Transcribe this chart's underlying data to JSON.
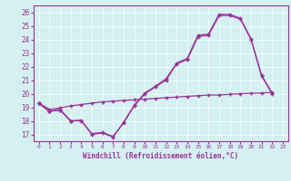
{
  "xlabel": "Windchill (Refroidissement éolien,°C)",
  "x": [
    0,
    1,
    2,
    3,
    4,
    5,
    6,
    7,
    8,
    9,
    10,
    11,
    12,
    13,
    14,
    15,
    16,
    17,
    18,
    19,
    20,
    21,
    22,
    23
  ],
  "series": [
    [
      19.3,
      18.7,
      18.85,
      18.0,
      18.05,
      17.0,
      17.1,
      16.8,
      17.9,
      19.15,
      20.05,
      20.55,
      21.1,
      22.25,
      22.6,
      24.3,
      24.4,
      25.85,
      25.85,
      25.55,
      24.05,
      21.35,
      20.05,
      null
    ],
    [
      19.3,
      18.7,
      18.8,
      18.0,
      18.0,
      17.05,
      17.15,
      16.85,
      17.85,
      19.1,
      20.0,
      20.5,
      21.0,
      22.2,
      22.5,
      24.2,
      24.3,
      25.75,
      25.75,
      25.5,
      24.0,
      21.3,
      20.0,
      null
    ],
    [
      19.3,
      18.7,
      18.8,
      18.0,
      null,
      null,
      null,
      null,
      null,
      null,
      null,
      null,
      null,
      null,
      null,
      null,
      null,
      null,
      null,
      null,
      null,
      null,
      null,
      null
    ],
    [
      19.3,
      18.85,
      18.95,
      19.1,
      19.2,
      19.3,
      19.4,
      19.45,
      19.5,
      19.55,
      19.6,
      19.65,
      19.7,
      19.75,
      19.8,
      19.85,
      19.9,
      19.9,
      19.95,
      20.0,
      20.02,
      20.05,
      20.1,
      null
    ]
  ],
  "ylim": [
    16.5,
    26.5
  ],
  "xlim": [
    -0.5,
    23.5
  ],
  "yticks": [
    17,
    18,
    19,
    20,
    21,
    22,
    23,
    24,
    25,
    26
  ],
  "xticks": [
    0,
    1,
    2,
    3,
    4,
    5,
    6,
    7,
    8,
    9,
    10,
    11,
    12,
    13,
    14,
    15,
    16,
    17,
    18,
    19,
    20,
    21,
    22,
    23
  ],
  "line_color": "#993399",
  "bg_color": "#d4f0f0",
  "grid_color": "#ffffff",
  "figwidth": 3.2,
  "figheight": 2.0,
  "dpi": 100
}
